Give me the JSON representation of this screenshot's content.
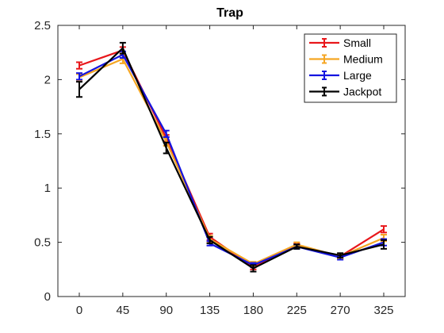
{
  "chart_data": {
    "type": "line",
    "title": "Trap",
    "xlabel": "",
    "ylabel": "",
    "categories": [
      "0",
      "45",
      "90",
      "135",
      "180",
      "225",
      "270",
      "325"
    ],
    "ylim": [
      0,
      2.5
    ],
    "yticks": [
      "0",
      "0.5",
      "1",
      "1.5",
      "2",
      "2.5"
    ],
    "grid": false,
    "legend_position": "top-right",
    "series": [
      {
        "name": "Small",
        "color": "#e8171b",
        "values": [
          2.13,
          2.27,
          1.46,
          0.55,
          0.27,
          0.47,
          0.37,
          0.62
        ],
        "errors": [
          0.03,
          0.03,
          0.03,
          0.03,
          0.02,
          0.02,
          0.02,
          0.03
        ]
      },
      {
        "name": "Medium",
        "color": "#f5a623",
        "values": [
          2.02,
          2.19,
          1.43,
          0.53,
          0.3,
          0.48,
          0.37,
          0.54
        ],
        "errors": [
          0.03,
          0.04,
          0.04,
          0.03,
          0.02,
          0.02,
          0.02,
          0.03
        ]
      },
      {
        "name": "Large",
        "color": "#1414e0",
        "values": [
          2.03,
          2.23,
          1.5,
          0.49,
          0.29,
          0.46,
          0.36,
          0.5
        ],
        "errors": [
          0.03,
          0.03,
          0.03,
          0.02,
          0.02,
          0.02,
          0.02,
          0.03
        ]
      },
      {
        "name": "Jackpot",
        "color": "#000000",
        "values": [
          1.91,
          2.29,
          1.37,
          0.52,
          0.26,
          0.46,
          0.38,
          0.48
        ],
        "errors": [
          0.07,
          0.05,
          0.05,
          0.03,
          0.03,
          0.02,
          0.02,
          0.04
        ]
      }
    ]
  }
}
